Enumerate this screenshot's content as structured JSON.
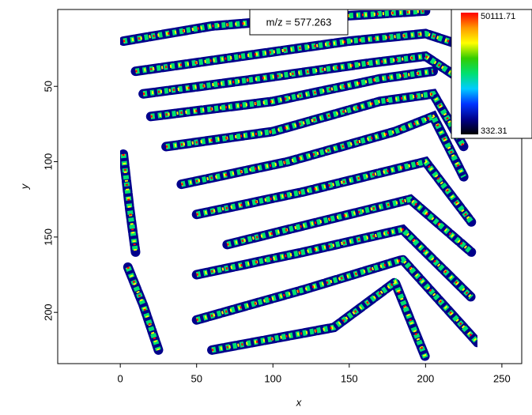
{
  "chart_data": {
    "type": "image",
    "annotation": "m/z = 577.263",
    "x_label": "x",
    "y_label": "y",
    "xlim": [
      -41,
      263
    ],
    "ylim": [
      -1,
      234
    ],
    "y_reversed": true,
    "xticks": [
      0,
      50,
      100,
      150,
      200,
      250
    ],
    "yticks": [
      50,
      100,
      150,
      200
    ],
    "colorbar": {
      "min": 332.31,
      "max": 50111.71,
      "colors": [
        "#000000",
        "#00008b",
        "#0033ff",
        "#00ccff",
        "#00e070",
        "#33cc00",
        "#ffff00",
        "#ff9900",
        "#ff0000"
      ]
    }
  }
}
